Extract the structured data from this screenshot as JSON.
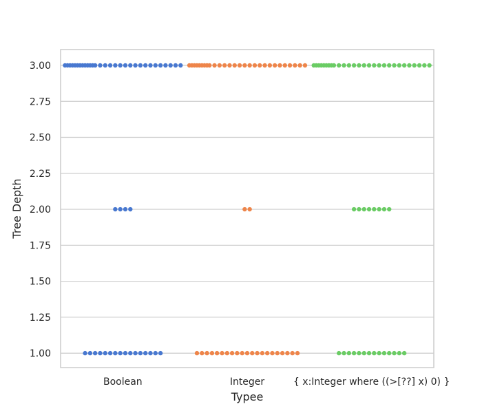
{
  "chart_data": {
    "type": "scatter",
    "subtype": "swarm",
    "xlabel": "Typee",
    "ylabel": "Tree Depth",
    "ylim": [
      0.9,
      3.11
    ],
    "yticks": [
      1.0,
      1.25,
      1.5,
      1.75,
      2.0,
      2.25,
      2.5,
      2.75,
      3.0
    ],
    "ytick_labels": [
      "1.00",
      "1.25",
      "1.50",
      "1.75",
      "2.00",
      "2.25",
      "2.50",
      "2.75",
      "3.00"
    ],
    "grid": true,
    "categories": [
      "Boolean",
      "Integer",
      "{ x:Integer where ((>[??] x) 0) }"
    ],
    "colors": [
      "#4878d0",
      "#ee854a",
      "#6acc64"
    ],
    "series": [
      {
        "category": "Boolean",
        "counts": [
          {
            "y": 1.0,
            "n": 16
          },
          {
            "y": 2.0,
            "n": 4
          },
          {
            "y": 3.0,
            "n": 30
          }
        ]
      },
      {
        "category": "Integer",
        "counts": [
          {
            "y": 1.0,
            "n": 21
          },
          {
            "y": 2.0,
            "n": 2
          },
          {
            "y": 3.0,
            "n": 28
          }
        ]
      },
      {
        "category": "{ x:Integer where ((>[??] x) 0) }",
        "counts": [
          {
            "y": 1.0,
            "n": 14
          },
          {
            "y": 2.0,
            "n": 8
          },
          {
            "y": 3.0,
            "n": 28
          }
        ]
      }
    ]
  }
}
